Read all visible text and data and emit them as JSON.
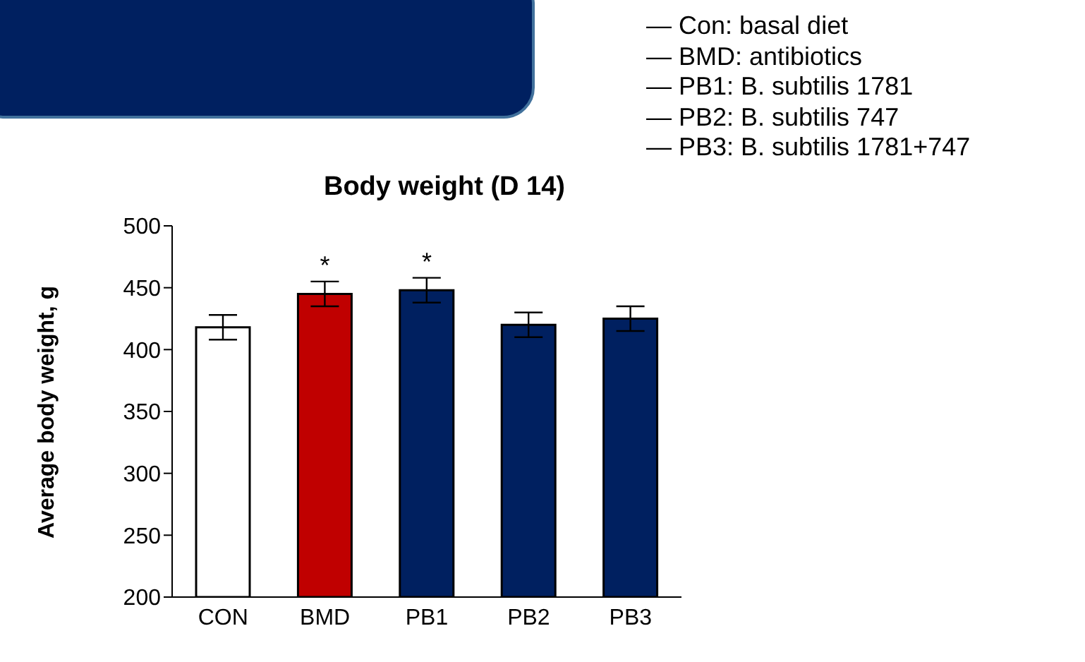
{
  "chart_data": {
    "type": "bar",
    "title": "Body weight (D 14)",
    "ylabel": "Average body weight, g",
    "categories": [
      "CON",
      "BMD",
      "PB1",
      "PB2",
      "PB3"
    ],
    "values": [
      418,
      445,
      448,
      420,
      425
    ],
    "errors": [
      10,
      10,
      10,
      10,
      10
    ],
    "colors": [
      "#ffffff",
      "#c00000",
      "#002060",
      "#002060",
      "#002060"
    ],
    "ylim": [
      200,
      500
    ],
    "yticks": [
      200,
      250,
      300,
      350,
      400,
      450,
      500
    ],
    "annotations": [
      {
        "text": "*",
        "x": "BMD",
        "y": 445
      },
      {
        "text": "*",
        "x": "PB1",
        "y": 448
      },
      "— Con: basal diet",
      "— BMD: antibiotics",
      "— PB1: B. subtilis 1781",
      "— PB2: B. subtilis 747",
      "— PB3: B. subtilis 1781+747"
    ]
  }
}
